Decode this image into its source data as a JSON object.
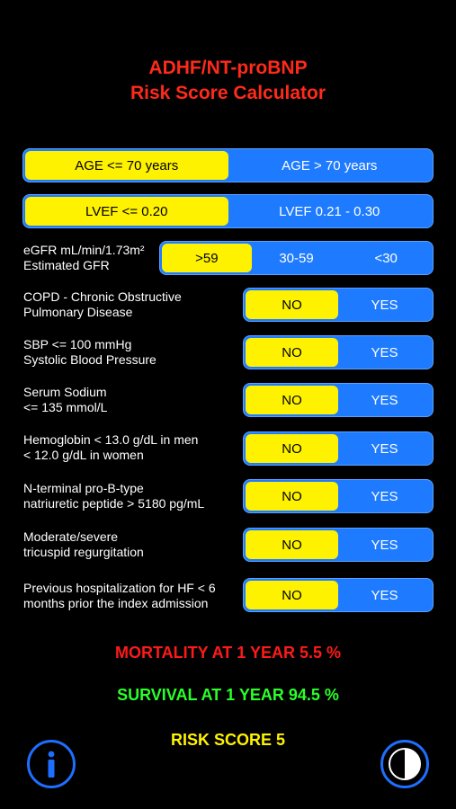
{
  "header": {
    "title_line1": "ADHF/NT-proBNP",
    "title_line2": "Risk Score Calculator"
  },
  "age": {
    "options": [
      "AGE <= 70 years",
      "AGE > 70 years"
    ],
    "selected": 0
  },
  "lvef": {
    "options": [
      "LVEF <= 0.20",
      "LVEF 0.21 - 0.30"
    ],
    "selected": 0
  },
  "egfr": {
    "label_line1": "eGFR mL/min/1.73m²",
    "label_line2": "Estimated GFR",
    "options": [
      ">59",
      "30-59",
      "<30"
    ],
    "selected": 0
  },
  "copd": {
    "label_line1": "COPD - Chronic Obstructive",
    "label_line2": "Pulmonary Disease",
    "options": [
      "NO",
      "YES"
    ],
    "selected": 0
  },
  "sbp": {
    "label_line1": "SBP <= 100 mmHg",
    "label_line2": "Systolic Blood Pressure",
    "options": [
      "NO",
      "YES"
    ],
    "selected": 0
  },
  "sodium": {
    "label_line1": "Serum Sodium",
    "label_line2": "<= 135 mmol/L",
    "options": [
      "NO",
      "YES"
    ],
    "selected": 0
  },
  "hemoglobin": {
    "label_line1": "Hemoglobin < 13.0 g/dL in men",
    "label_line2": "< 12.0 g/dL in women",
    "options": [
      "NO",
      "YES"
    ],
    "selected": 0
  },
  "ntprobnp": {
    "label_line1": "N-terminal pro-B-type",
    "label_line2": "natriuretic peptide > 5180 pg/mL",
    "options": [
      "NO",
      "YES"
    ],
    "selected": 0
  },
  "tricuspid": {
    "label_line1": "Moderate/severe",
    "label_line2": "tricuspid regurgitation",
    "options": [
      "NO",
      "YES"
    ],
    "selected": 0
  },
  "hospitalization": {
    "label_line1": "Previous hospitalization for HF < 6",
    "label_line2": "months prior the index admission",
    "options": [
      "NO",
      "YES"
    ],
    "selected": 0
  },
  "results": {
    "mortality": "MORTALITY AT 1 YEAR  5.5 %",
    "survival": "SURVIVAL AT 1 YEAR  94.5 %",
    "risk_score": "RISK SCORE  5"
  },
  "icons": {
    "info": "info-icon",
    "theme": "contrast-icon"
  },
  "colors": {
    "title": "#ff2a1a",
    "segment_bg": "#1e7bff",
    "selected": "#fff200",
    "mortality": "#ff1a1a",
    "survival": "#2aff2a",
    "risk_score": "#fff200",
    "icon_blue": "#1e6fff"
  }
}
